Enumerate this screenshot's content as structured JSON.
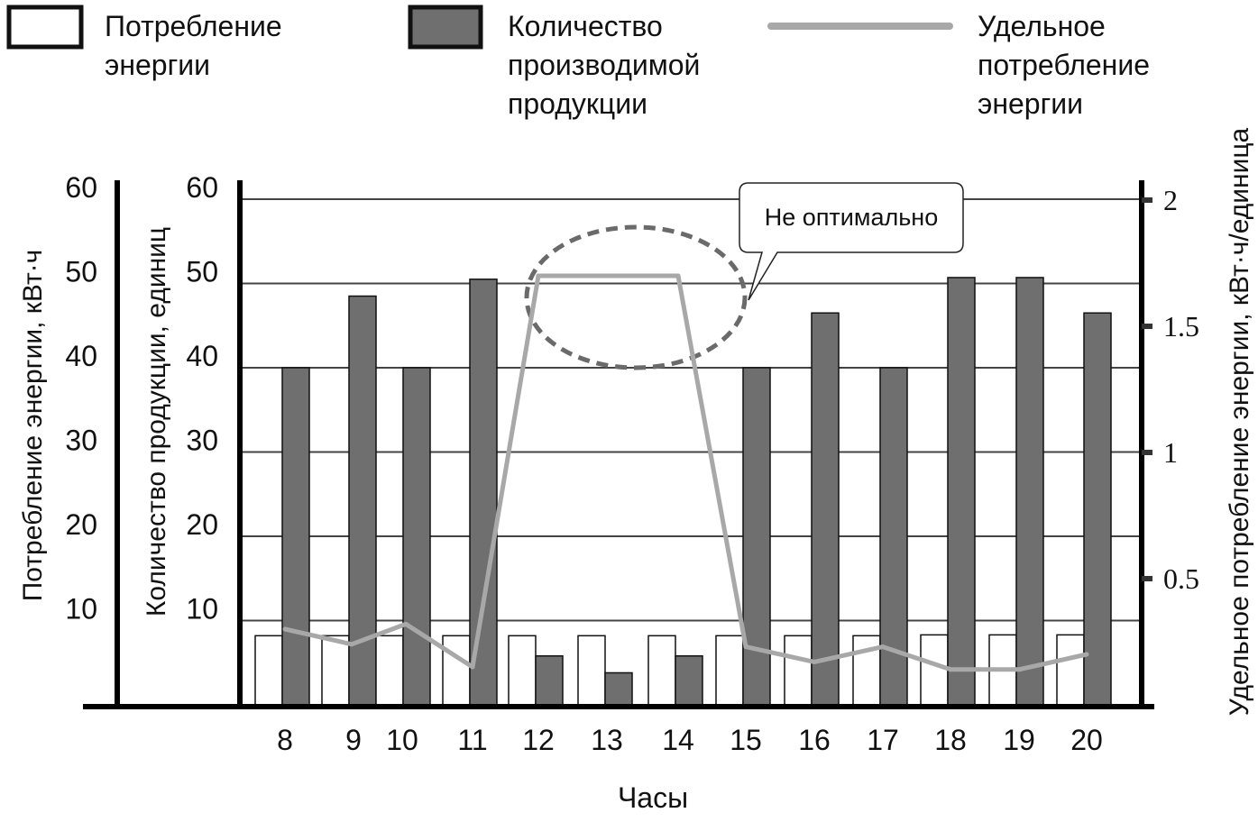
{
  "chart_data": {
    "type": "bar",
    "xlabel": "Часы",
    "categories": [
      "8",
      "9",
      "10",
      "11",
      "12",
      "13",
      "14",
      "15",
      "16",
      "17",
      "18",
      "19",
      "20"
    ],
    "series": [
      {
        "name": "Потребление энергии",
        "kind": "bar",
        "color": "#ffffff",
        "axis": "y1",
        "values": [
          8.2,
          8.2,
          8.2,
          8.2,
          8.2,
          8.2,
          8.2,
          8.2,
          8.2,
          8.2,
          8.3,
          8.3,
          8.3
        ]
      },
      {
        "name": "Количество производимой продукции",
        "kind": "bar",
        "color": "#6f6f6f",
        "axis": "y2",
        "values": [
          40,
          48.5,
          40,
          50.5,
          5.8,
          3.8,
          5.8,
          40,
          46.5,
          40,
          50.7,
          50.7,
          46.5
        ]
      },
      {
        "name": "Удельное потребление энергии",
        "kind": "line",
        "color": "#a8a8a8",
        "axis": "y3",
        "values": [
          0.3,
          0.24,
          0.32,
          0.15,
          1.7,
          1.7,
          1.7,
          0.23,
          0.17,
          0.23,
          0.14,
          0.14,
          0.2
        ]
      }
    ],
    "y1": {
      "label": "Потребление энергии, кВт·ч",
      "ticks": [
        "10",
        "20",
        "30",
        "40",
        "50",
        "60"
      ],
      "ylim": [
        0,
        62
      ]
    },
    "y2": {
      "label": "Количество продукции, единиц",
      "ticks": [
        "10",
        "20",
        "30",
        "40",
        "50",
        "60"
      ],
      "ylim": [
        0,
        62
      ]
    },
    "y3": {
      "label": "Удельное потребление энергии, кВт·ч/единица",
      "ticks": [
        "0.5",
        "1",
        "1.5",
        "2"
      ],
      "ylim": [
        0,
        2.0667
      ]
    },
    "grid": true,
    "legend": {
      "position": "top",
      "entries": [
        [
          "Потребление",
          "энергии"
        ],
        [
          "Количество",
          "производимой",
          "продукции"
        ],
        [
          "Удельное",
          "потребление",
          "энергии"
        ]
      ]
    },
    "annotation": {
      "text": "Не оптимально",
      "marks_categories": [
        "12",
        "13",
        "14"
      ]
    }
  }
}
